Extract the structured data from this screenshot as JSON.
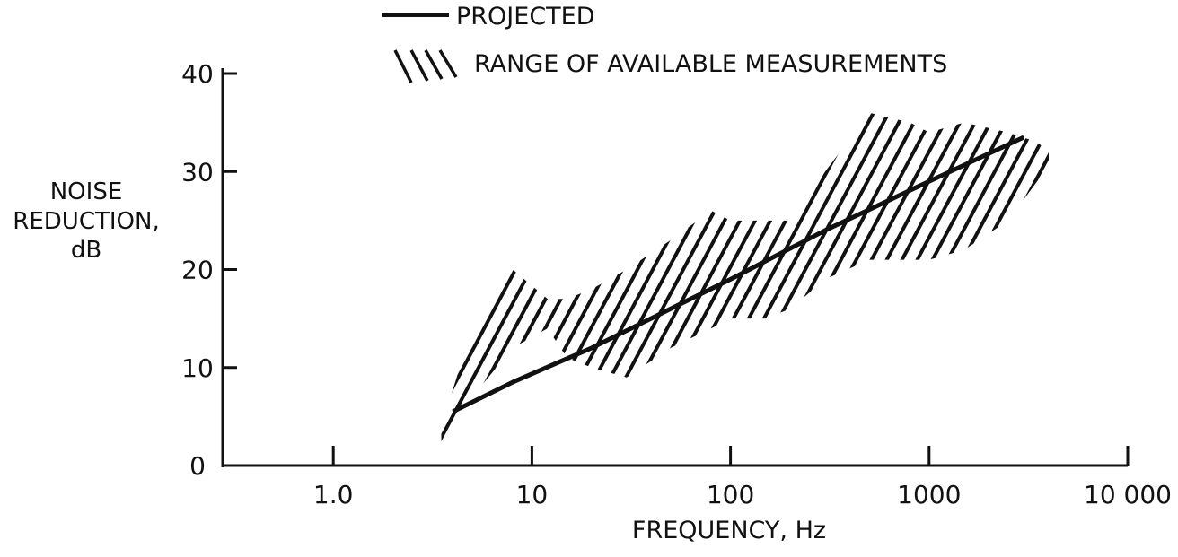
{
  "chart_data": {
    "type": "line",
    "title": "",
    "xlabel": "FREQUENCY,  Hz",
    "ylabel_lines": [
      "NOISE",
      "REDUCTION,",
      "dB"
    ],
    "x_scale": "log",
    "xlim": [
      0.1,
      10000
    ],
    "ylim": [
      0,
      40
    ],
    "x_ticks": [
      1,
      10,
      100,
      1000,
      10000
    ],
    "x_tick_labels": [
      "1.0",
      "10",
      "100",
      "1000",
      "10 000"
    ],
    "y_ticks": [
      0,
      10,
      20,
      30,
      40
    ],
    "y_tick_labels": [
      "0",
      "10",
      "20",
      "30",
      "40"
    ],
    "grid": false,
    "legend": {
      "placement": "top",
      "entries": [
        {
          "symbol": "line",
          "label": "PROJECTED"
        },
        {
          "symbol": "hatch",
          "label": "RANGE OF AVAILABLE MEASUREMENTS"
        }
      ]
    },
    "series": [
      {
        "name": "PROJECTED",
        "style": "line",
        "x": [
          4,
          8,
          20,
          50,
          100,
          300,
          1000,
          3000
        ],
        "y": [
          5.5,
          8.5,
          12,
          16,
          19,
          24,
          29,
          33.5
        ]
      }
    ],
    "range_band": {
      "name": "RANGE OF AVAILABLE MEASUREMENTS",
      "style": "hatch",
      "x": [
        3.5,
        5,
        8,
        12,
        15,
        20,
        30,
        50,
        80,
        100,
        150,
        200,
        300,
        500,
        800,
        1000,
        1500,
        2500,
        3500,
        4000
      ],
      "lower": [
        2,
        7,
        12,
        14,
        11,
        10,
        9,
        12,
        14,
        15,
        15,
        16,
        19,
        21,
        21,
        21,
        22,
        25,
        29,
        30
      ],
      "upper": [
        4,
        14,
        20,
        17,
        17,
        18,
        20,
        23,
        26,
        25,
        25,
        25,
        30,
        36,
        35,
        34,
        35,
        34,
        33,
        32
      ]
    }
  }
}
